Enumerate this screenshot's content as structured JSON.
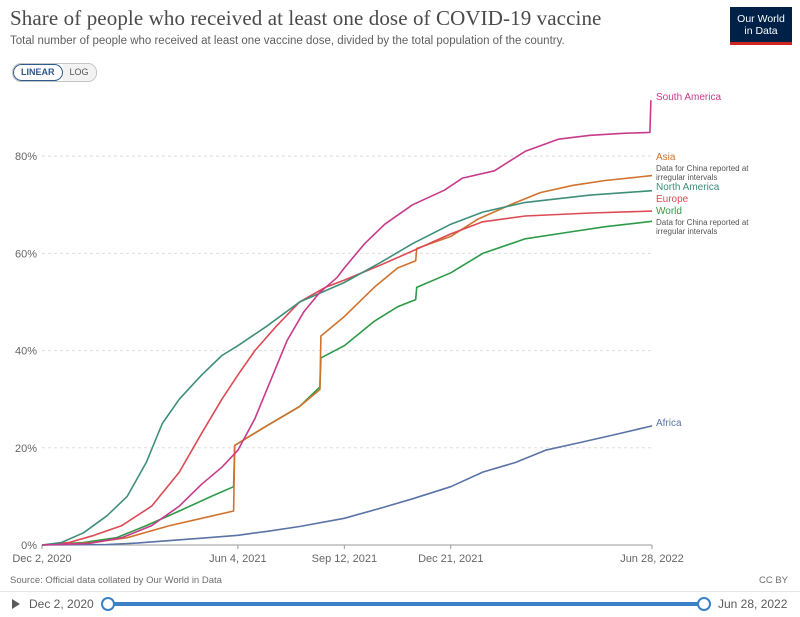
{
  "header": {
    "title": "Share of people who received at least one dose of COVID-19 vaccine",
    "subtitle": "Total number of people who received at least one vaccine dose, divided by the total population of the country.",
    "logo_line1": "Our World",
    "logo_line2": "in Data"
  },
  "scale_toggle": {
    "linear_label": "LINEAR",
    "log_label": "LOG",
    "selected": "LINEAR"
  },
  "footer": {
    "source": "Source: Official data collated by Our World in Data",
    "license": "CC BY"
  },
  "timeline": {
    "start_label": "Dec 2, 2020",
    "end_label": "Jun 28, 2022"
  },
  "colors": {
    "South America": "#c83a8c",
    "Asia": "#d1732e",
    "North America": "#3e8f7a",
    "Europe": "#dc4a54",
    "World": "#2e9a47",
    "Africa": "#5a73a6",
    "grid": "#dddddd",
    "axis_text": "#666666"
  },
  "chart_data": {
    "type": "line",
    "title": "Share of people who received at least one dose of COVID-19 vaccine",
    "xlabel": "",
    "ylabel": "",
    "x_ticks": [
      "Dec 2, 2020",
      "Jun 4, 2021",
      "Sep 12, 2021",
      "Dec 21, 2021",
      "Jun 28, 2022"
    ],
    "y_ticks": [
      "0%",
      "20%",
      "40%",
      "60%",
      "80%"
    ],
    "xlim": [
      "2020-12-02",
      "2022-06-28"
    ],
    "ylim": [
      0,
      93
    ],
    "grid": "horizontal dashed",
    "legend": "inline labels at right end of lines",
    "series": [
      {
        "name": "South America",
        "points": [
          [
            "2020-12-02",
            0
          ],
          [
            "2021-01-15",
            0.3
          ],
          [
            "2021-02-15",
            1.5
          ],
          [
            "2021-03-15",
            4
          ],
          [
            "2021-04-10",
            8
          ],
          [
            "2021-05-01",
            12.5
          ],
          [
            "2021-05-20",
            16
          ],
          [
            "2021-06-04",
            19.5
          ],
          [
            "2021-06-20",
            26
          ],
          [
            "2021-07-05",
            34
          ],
          [
            "2021-07-20",
            42
          ],
          [
            "2021-08-05",
            48
          ],
          [
            "2021-08-20",
            52
          ],
          [
            "2021-09-05",
            55
          ],
          [
            "2021-09-12",
            57
          ],
          [
            "2021-10-01",
            62
          ],
          [
            "2021-10-20",
            66
          ],
          [
            "2021-11-15",
            70
          ],
          [
            "2021-12-15",
            73
          ],
          [
            "2022-01-01",
            75.5
          ],
          [
            "2022-01-31",
            77
          ],
          [
            "2022-03-01",
            81
          ],
          [
            "2022-04-01",
            83.5
          ],
          [
            "2022-05-01",
            84.3
          ],
          [
            "2022-06-01",
            84.7
          ],
          [
            "2022-06-26",
            84.9
          ],
          [
            "2022-06-27",
            91.5
          ]
        ]
      },
      {
        "name": "Asia",
        "notes": "Data for China reported at irregular intervals",
        "points": [
          [
            "2020-12-02",
            0
          ],
          [
            "2021-01-15",
            0.4
          ],
          [
            "2021-02-20",
            1.5
          ],
          [
            "2021-04-01",
            4
          ],
          [
            "2021-05-01",
            5.5
          ],
          [
            "2021-05-31",
            7
          ],
          [
            "2021-06-01",
            20.5
          ],
          [
            "2021-07-01",
            24.5
          ],
          [
            "2021-08-01",
            28.5
          ],
          [
            "2021-08-20",
            32
          ],
          [
            "2021-08-21",
            43
          ],
          [
            "2021-09-12",
            47
          ],
          [
            "2021-10-10",
            53
          ],
          [
            "2021-11-01",
            57
          ],
          [
            "2021-11-18",
            58.5
          ],
          [
            "2021-11-19",
            61
          ],
          [
            "2021-12-21",
            63.5
          ],
          [
            "2022-01-15",
            67
          ],
          [
            "2022-02-15",
            70
          ],
          [
            "2022-03-15",
            72.5
          ],
          [
            "2022-04-15",
            74
          ],
          [
            "2022-05-15",
            75
          ],
          [
            "2022-06-28",
            76
          ]
        ]
      },
      {
        "name": "North America",
        "points": [
          [
            "2020-12-02",
            0
          ],
          [
            "2020-12-20",
            0.5
          ],
          [
            "2021-01-10",
            2.5
          ],
          [
            "2021-02-01",
            6
          ],
          [
            "2021-02-20",
            10
          ],
          [
            "2021-03-10",
            17
          ],
          [
            "2021-03-25",
            25
          ],
          [
            "2021-04-10",
            30
          ],
          [
            "2021-05-01",
            35
          ],
          [
            "2021-05-20",
            39
          ],
          [
            "2021-06-04",
            41
          ],
          [
            "2021-07-01",
            45
          ],
          [
            "2021-08-01",
            50
          ],
          [
            "2021-09-12",
            54
          ],
          [
            "2021-10-15",
            58
          ],
          [
            "2021-11-15",
            62
          ],
          [
            "2021-12-21",
            66
          ],
          [
            "2022-01-20",
            68.5
          ],
          [
            "2022-03-01",
            70.5
          ],
          [
            "2022-05-01",
            72
          ],
          [
            "2022-06-28",
            72.9
          ]
        ]
      },
      {
        "name": "Europe",
        "points": [
          [
            "2020-12-02",
            0
          ],
          [
            "2020-12-27",
            0.5
          ],
          [
            "2021-01-20",
            2
          ],
          [
            "2021-02-15",
            4
          ],
          [
            "2021-03-15",
            8
          ],
          [
            "2021-04-10",
            15
          ],
          [
            "2021-05-01",
            23
          ],
          [
            "2021-05-20",
            30
          ],
          [
            "2021-06-04",
            35
          ],
          [
            "2021-06-20",
            40
          ],
          [
            "2021-07-10",
            45
          ],
          [
            "2021-08-01",
            50
          ],
          [
            "2021-08-25",
            53
          ],
          [
            "2021-09-12",
            54.5
          ],
          [
            "2021-10-15",
            57.5
          ],
          [
            "2021-11-15",
            60.5
          ],
          [
            "2021-12-21",
            64
          ],
          [
            "2022-01-20",
            66.5
          ],
          [
            "2022-03-01",
            67.7
          ],
          [
            "2022-05-01",
            68.3
          ],
          [
            "2022-06-28",
            68.7
          ]
        ]
      },
      {
        "name": "World",
        "notes": "Data for China reported at irregular intervals",
        "points": [
          [
            "2020-12-02",
            0
          ],
          [
            "2021-01-10",
            0.5
          ],
          [
            "2021-02-10",
            1.5
          ],
          [
            "2021-03-10",
            4
          ],
          [
            "2021-04-10",
            7
          ],
          [
            "2021-05-10",
            10
          ],
          [
            "2021-05-31",
            12
          ],
          [
            "2021-06-01",
            20.5
          ],
          [
            "2021-07-01",
            24.5
          ],
          [
            "2021-08-01",
            28.5
          ],
          [
            "2021-08-20",
            32.5
          ],
          [
            "2021-08-21",
            38.5
          ],
          [
            "2021-09-12",
            41
          ],
          [
            "2021-10-10",
            46
          ],
          [
            "2021-11-01",
            49
          ],
          [
            "2021-11-18",
            50.5
          ],
          [
            "2021-11-19",
            53
          ],
          [
            "2021-12-21",
            56
          ],
          [
            "2022-01-20",
            60
          ],
          [
            "2022-03-01",
            63
          ],
          [
            "2022-04-15",
            64.5
          ],
          [
            "2022-05-15",
            65.5
          ],
          [
            "2022-06-28",
            66.6
          ]
        ]
      },
      {
        "name": "Africa",
        "points": [
          [
            "2020-12-02",
            0
          ],
          [
            "2021-02-01",
            0.1
          ],
          [
            "2021-03-01",
            0.4
          ],
          [
            "2021-04-01",
            0.9
          ],
          [
            "2021-05-01",
            1.4
          ],
          [
            "2021-06-04",
            2
          ],
          [
            "2021-07-01",
            2.8
          ],
          [
            "2021-08-01",
            3.8
          ],
          [
            "2021-09-12",
            5.5
          ],
          [
            "2021-10-15",
            7.5
          ],
          [
            "2021-11-15",
            9.5
          ],
          [
            "2021-12-21",
            12
          ],
          [
            "2022-01-20",
            15
          ],
          [
            "2022-02-20",
            17
          ],
          [
            "2022-03-20",
            19.5
          ],
          [
            "2022-04-20",
            21
          ],
          [
            "2022-05-20",
            22.5
          ],
          [
            "2022-06-28",
            24.5
          ]
        ]
      }
    ],
    "labels": [
      {
        "series": "South America",
        "text": "South America"
      },
      {
        "series": "Asia",
        "text": "Asia",
        "note": "Data for China reported at irregular intervals"
      },
      {
        "series": "North America",
        "text": "North America"
      },
      {
        "series": "Europe",
        "text": "Europe"
      },
      {
        "series": "World",
        "text": "World",
        "note": "Data for China reported at irregular intervals"
      },
      {
        "series": "Africa",
        "text": "Africa"
      }
    ]
  }
}
